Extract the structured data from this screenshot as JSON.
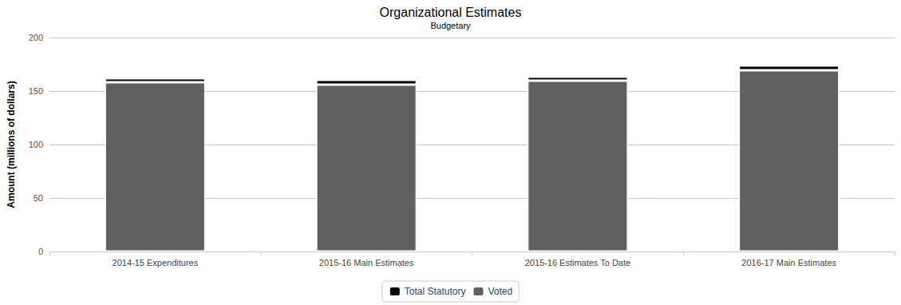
{
  "chart_data": {
    "type": "bar",
    "title": "Organizational Estimates",
    "subtitle": "Budgetary",
    "y_label": "Amount (millions of dollars)",
    "categories": [
      "2014-15 Expenditures",
      "2015-16 Main Estimates",
      "2015-16 Estimates To Date",
      "2016-17 Main Estimates"
    ],
    "series": [
      {
        "name": "Total Statutory",
        "color": "#000000",
        "values": [
          3.8,
          4.4,
          3.7,
          4.5
        ]
      },
      {
        "name": "Voted",
        "color": "#606060",
        "values": [
          158.2,
          156.0,
          159.7,
          169.4
        ]
      }
    ],
    "stacked": true,
    "ylim": [
      0,
      200
    ],
    "yticks": [
      0,
      50,
      100,
      150,
      200
    ],
    "grid": true,
    "legend": "bottom"
  }
}
